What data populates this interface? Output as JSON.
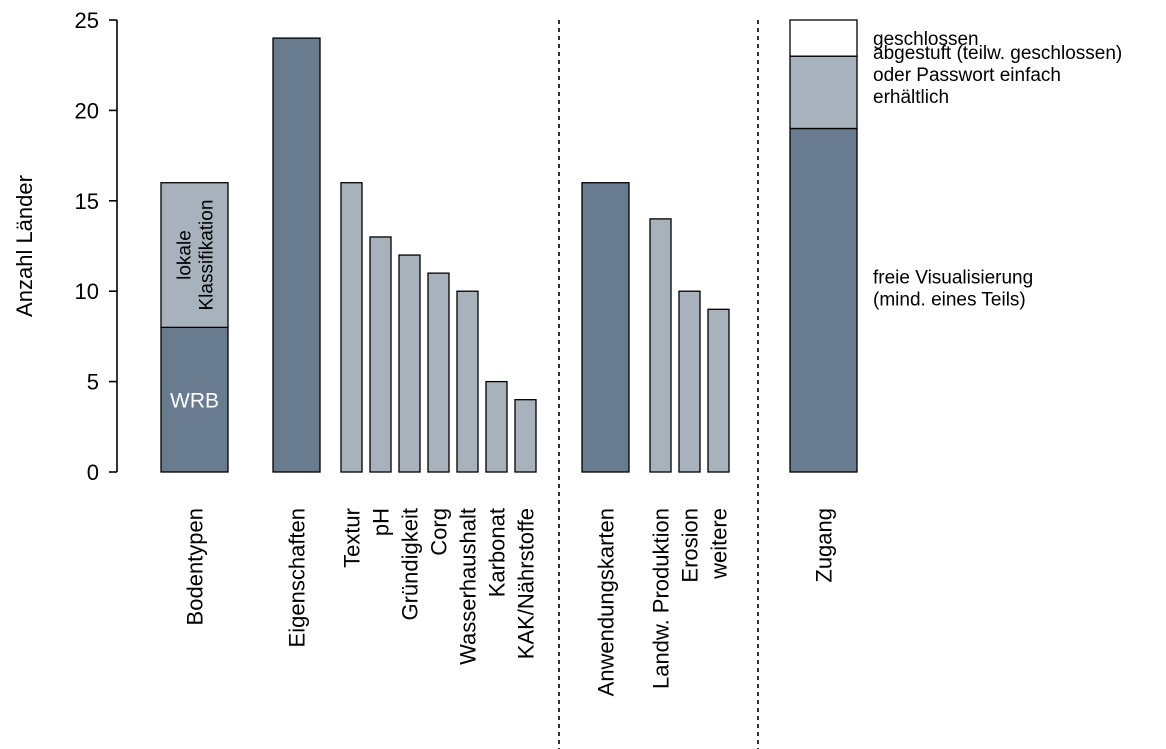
{
  "chart_data": {
    "type": "bar",
    "ylabel": "Anzahl Länder",
    "ylim": [
      0,
      25
    ],
    "yticks": [
      0,
      5,
      10,
      15,
      20,
      25
    ],
    "grid": false,
    "colors": {
      "dark": "#697c8f",
      "light": "#a8b2bd",
      "white": "#ffffff"
    },
    "bars": [
      {
        "label": "Bodentypen",
        "segments": [
          {
            "value": 8,
            "color": "dark",
            "text": "WRB"
          },
          {
            "value": 8,
            "color": "light",
            "text_lines": [
              "lokale",
              "Klassifikation"
            ]
          }
        ]
      },
      {
        "label": "Eigenschaften",
        "segments": [
          {
            "value": 24,
            "color": "dark"
          }
        ]
      },
      {
        "label": "Textur",
        "segments": [
          {
            "value": 16,
            "color": "light"
          }
        ]
      },
      {
        "label": "pH",
        "segments": [
          {
            "value": 13,
            "color": "light"
          }
        ]
      },
      {
        "label": "Gründigkeit",
        "segments": [
          {
            "value": 12,
            "color": "light"
          }
        ]
      },
      {
        "label": "Corg",
        "segments": [
          {
            "value": 11,
            "color": "light"
          }
        ]
      },
      {
        "label": "Wasserhaushalt",
        "segments": [
          {
            "value": 10,
            "color": "light"
          }
        ]
      },
      {
        "label": "Karbonat",
        "segments": [
          {
            "value": 5,
            "color": "light"
          }
        ]
      },
      {
        "label": "KAK/Nährstoffe",
        "segments": [
          {
            "value": 4,
            "color": "light"
          }
        ]
      },
      {
        "label": "Anwendungskarten",
        "segments": [
          {
            "value": 16,
            "color": "dark"
          }
        ]
      },
      {
        "label": "Landw. Produktion",
        "segments": [
          {
            "value": 14,
            "color": "light"
          }
        ]
      },
      {
        "label": "Erosion",
        "segments": [
          {
            "value": 10,
            "color": "light"
          }
        ]
      },
      {
        "label": "weitere",
        "segments": [
          {
            "value": 9,
            "color": "light"
          }
        ]
      },
      {
        "label": "Zugang",
        "segments": [
          {
            "value": 19,
            "color": "dark"
          },
          {
            "value": 4,
            "color": "light"
          },
          {
            "value": 2,
            "color": "white"
          }
        ]
      }
    ],
    "annotations": [
      {
        "lines": [
          "geschlossen"
        ],
        "y": 24
      },
      {
        "lines": [
          "abgestuft (teilw. geschlossen)",
          "oder Passwort einfach",
          "erhältlich"
        ],
        "y": 22
      },
      {
        "lines": [
          "freie Visualisierung",
          "(mind. eines Teils)"
        ],
        "y": 10.2
      }
    ]
  }
}
